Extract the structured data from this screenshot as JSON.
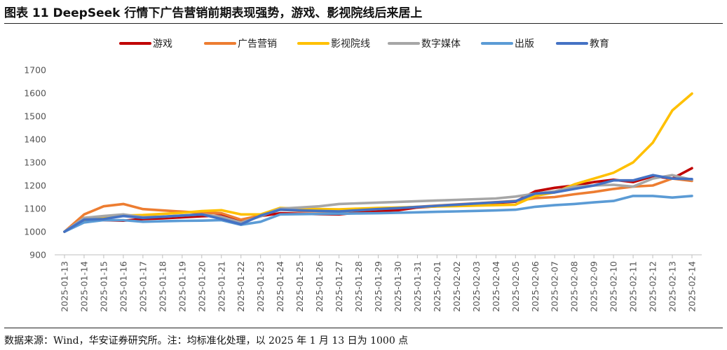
{
  "header": {
    "title": "图表 11 DeepSeek 行情下广告营销前期表现强势，游戏、影视院线后来居上"
  },
  "footer": {
    "source": "数据来源：Wind，华安证券研究所。注：均标准化处理，以 2025 年 1 月 13 日为 1000 点"
  },
  "chart_data": {
    "type": "line",
    "title": "",
    "xlabel": "",
    "ylabel": "",
    "ylim": [
      900,
      1700
    ],
    "yticks": [
      900,
      1000,
      1100,
      1200,
      1300,
      1400,
      1500,
      1600,
      1700
    ],
    "grid": "none",
    "legend_position": "top",
    "categories": [
      "2025-01-13",
      "2025-01-14",
      "2025-01-15",
      "2025-01-16",
      "2025-01-17",
      "2025-01-18",
      "2025-01-19",
      "2025-01-20",
      "2025-01-21",
      "2025-01-22",
      "2025-01-23",
      "2025-01-24",
      "2025-01-25",
      "2025-01-26",
      "2025-01-27",
      "2025-01-28",
      "2025-01-29",
      "2025-01-30",
      "2025-01-31",
      "2025-02-01",
      "2025-02-02",
      "2025-02-03",
      "2025-02-04",
      "2025-02-05",
      "2025-02-06",
      "2025-02-07",
      "2025-02-08",
      "2025-02-09",
      "2025-02-10",
      "2025-02-11",
      "2025-02-12",
      "2025-02-13",
      "2025-02-14"
    ],
    "series": [
      {
        "name": "游戏",
        "color": "#c00000",
        "values": [
          1000,
          1050,
          1050,
          1048,
          1055,
          1058,
          1062,
          1067,
          1070,
          1042,
          1068,
          1080,
          1078,
          1076,
          1075,
          1083,
          1090,
          1093,
          1105,
          1110,
          1115,
          1120,
          1125,
          1130,
          1175,
          1190,
          1200,
          1215,
          1225,
          1215,
          1240,
          1230,
          1275
        ]
      },
      {
        "name": "广告营销",
        "color": "#ed7d31",
        "values": [
          1000,
          1075,
          1110,
          1120,
          1098,
          1092,
          1087,
          1082,
          1080,
          1052,
          1070,
          1095,
          1090,
          1088,
          1087,
          1092,
          1098,
          1103,
          1108,
          1113,
          1118,
          1123,
          1128,
          1133,
          1145,
          1150,
          1162,
          1172,
          1185,
          1195,
          1200,
          1230,
          1220
        ]
      },
      {
        "name": "影视院线",
        "color": "#ffc000",
        "values": [
          1000,
          1048,
          1062,
          1070,
          1072,
          1077,
          1082,
          1089,
          1093,
          1075,
          1075,
          1103,
          1100,
          1098,
          1097,
          1100,
          1103,
          1105,
          1107,
          1109,
          1111,
          1113,
          1115,
          1117,
          1155,
          1170,
          1205,
          1230,
          1255,
          1300,
          1385,
          1525,
          1598
        ]
      },
      {
        "name": "数字媒体",
        "color": "#a6a6a6",
        "values": [
          1000,
          1060,
          1068,
          1075,
          1063,
          1065,
          1070,
          1075,
          1065,
          1040,
          1066,
          1100,
          1105,
          1110,
          1120,
          1123,
          1126,
          1129,
          1132,
          1135,
          1138,
          1141,
          1144,
          1152,
          1165,
          1175,
          1195,
          1200,
          1203,
          1195,
          1230,
          1245,
          1225
        ]
      },
      {
        "name": "出版",
        "color": "#5b9bd5",
        "values": [
          1000,
          1040,
          1050,
          1050,
          1043,
          1045,
          1047,
          1048,
          1050,
          1030,
          1043,
          1075,
          1076,
          1077,
          1078,
          1079,
          1080,
          1082,
          1084,
          1086,
          1088,
          1090,
          1092,
          1095,
          1108,
          1115,
          1120,
          1127,
          1133,
          1155,
          1155,
          1148,
          1155
        ]
      },
      {
        "name": "教育",
        "color": "#4472c4",
        "values": [
          1000,
          1052,
          1055,
          1068,
          1060,
          1065,
          1070,
          1075,
          1055,
          1032,
          1070,
          1095,
          1092,
          1090,
          1088,
          1093,
          1098,
          1102,
          1107,
          1112,
          1117,
          1122,
          1127,
          1132,
          1165,
          1170,
          1185,
          1200,
          1222,
          1222,
          1245,
          1230,
          1228
        ]
      }
    ]
  }
}
